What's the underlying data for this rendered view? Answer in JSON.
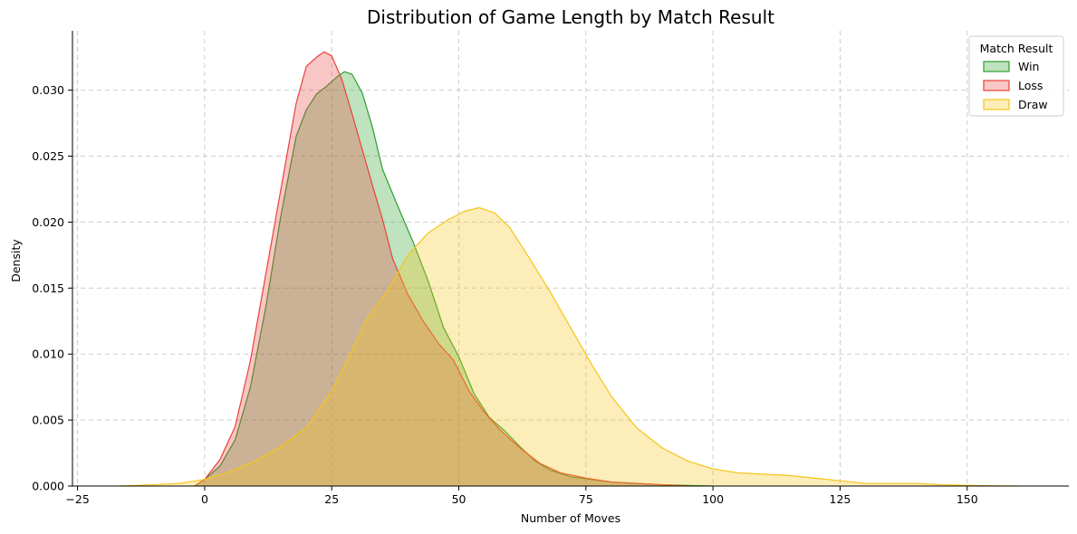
{
  "chart_data": {
    "type": "area",
    "title": "Distribution of Game Length by Match Result",
    "xlabel": "Number of Moves",
    "ylabel": "Density",
    "xlim": [
      -26,
      170
    ],
    "ylim": [
      0,
      0.0345
    ],
    "xticks": [
      -25,
      0,
      25,
      50,
      75,
      100,
      125,
      150
    ],
    "yticks": [
      0.0,
      0.005,
      0.01,
      0.015,
      0.02,
      0.025,
      0.03
    ],
    "xtick_labels": [
      "−25",
      "0",
      "25",
      "50",
      "75",
      "100",
      "125",
      "150"
    ],
    "ytick_labels": [
      "0.000",
      "0.005",
      "0.010",
      "0.015",
      "0.020",
      "0.025",
      "0.030"
    ],
    "grid": true,
    "legend": {
      "title": "Match Result",
      "placement": "top-right"
    },
    "series": [
      {
        "name": "Win",
        "color": "#2ca02c",
        "x": [
          -2,
          0,
          3,
          6,
          9,
          12,
          15,
          18,
          20,
          22,
          24,
          26,
          27.5,
          29,
          31,
          33,
          35,
          38,
          41,
          44,
          47,
          50,
          53,
          56,
          59,
          62,
          65,
          68,
          72,
          76,
          80,
          85,
          90,
          95,
          100
        ],
        "y": [
          0,
          0.0005,
          0.0015,
          0.0035,
          0.0075,
          0.0135,
          0.0205,
          0.0265,
          0.0285,
          0.0297,
          0.0303,
          0.031,
          0.0314,
          0.0312,
          0.0298,
          0.0272,
          0.024,
          0.0212,
          0.0185,
          0.0155,
          0.012,
          0.0098,
          0.007,
          0.0052,
          0.0042,
          0.003,
          0.0019,
          0.0012,
          0.0007,
          0.0005,
          0.0003,
          0.0002,
          0.0001,
          5e-05,
          0
        ]
      },
      {
        "name": "Loss",
        "color": "#e8433a",
        "x": [
          -2,
          0,
          3,
          6,
          9,
          12,
          15,
          18,
          20,
          22,
          23.5,
          25,
          27,
          29,
          31,
          33,
          35,
          37,
          40,
          43,
          46,
          49,
          52,
          55,
          58,
          62,
          66,
          70,
          75,
          80,
          85,
          90,
          95
        ],
        "y": [
          0,
          0.0005,
          0.002,
          0.0045,
          0.0095,
          0.016,
          0.0225,
          0.029,
          0.0318,
          0.0325,
          0.0329,
          0.0326,
          0.0308,
          0.0282,
          0.0255,
          0.0228,
          0.0202,
          0.0172,
          0.0145,
          0.0125,
          0.0108,
          0.0095,
          0.0072,
          0.0056,
          0.0043,
          0.0029,
          0.0017,
          0.001,
          0.0006,
          0.0003,
          0.0002,
          0.0001,
          0
        ]
      },
      {
        "name": "Draw",
        "color": "#f5c518",
        "x": [
          -17,
          -10,
          -5,
          0,
          5,
          10,
          15,
          20,
          25,
          28,
          32,
          36,
          40,
          44,
          48,
          51,
          54,
          57,
          60,
          64,
          68,
          72,
          76,
          80,
          85,
          90,
          95,
          100,
          105,
          110,
          115,
          120,
          125,
          130,
          135,
          140,
          145,
          150,
          155,
          160
        ],
        "y": [
          0,
          0.0001,
          0.0002,
          0.0005,
          0.0011,
          0.0019,
          0.003,
          0.0044,
          0.0072,
          0.0095,
          0.0127,
          0.0148,
          0.0175,
          0.0192,
          0.0202,
          0.0208,
          0.0211,
          0.0207,
          0.0196,
          0.0172,
          0.0147,
          0.012,
          0.0093,
          0.0068,
          0.0044,
          0.0029,
          0.0019,
          0.0013,
          0.001,
          0.0009,
          0.0008,
          0.0006,
          0.0004,
          0.0002,
          0.0002,
          0.0002,
          0.0001,
          5e-05,
          2e-05,
          0
        ]
      }
    ]
  }
}
